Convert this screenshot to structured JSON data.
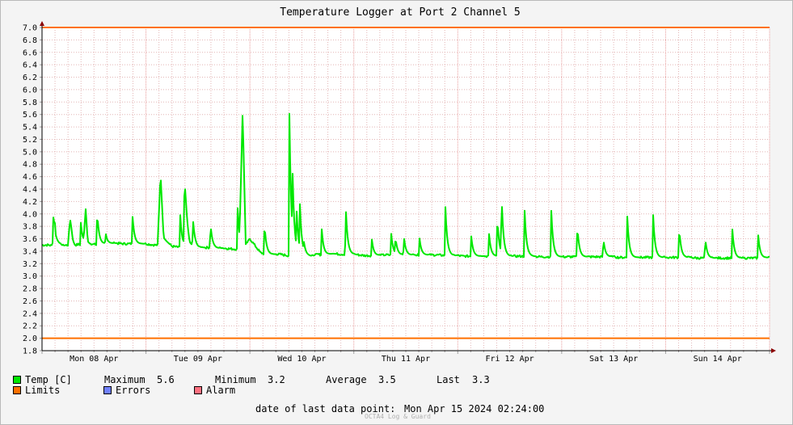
{
  "chart_data": {
    "type": "line",
    "title": "Temperature Logger at Port 2 Channel 5",
    "ylim": [
      1.8,
      7.0
    ],
    "yticks": [
      1.8,
      2.0,
      2.2,
      2.4,
      2.6,
      2.8,
      3.0,
      3.2,
      3.4,
      3.6,
      3.8,
      4.0,
      4.2,
      4.4,
      4.6,
      4.8,
      5.0,
      5.2,
      5.4,
      5.6,
      5.8,
      6.0,
      6.2,
      6.4,
      6.6,
      6.8,
      7.0
    ],
    "ytick_labels": [
      "1.8",
      "2.0",
      "2.2",
      "2.4",
      "2.6",
      "2.8",
      "3.0",
      "3.2",
      "3.4",
      "3.6",
      "3.8",
      "4.0",
      "4.2",
      "4.4",
      "4.6",
      "4.8",
      "5.0",
      "5.2",
      "5.4",
      "5.6",
      "5.8",
      "6.0",
      "6.2",
      "6.4",
      "6.6",
      "6.8",
      "7.0"
    ],
    "xlim_days": [
      0,
      7
    ],
    "xtick_labels": [
      "Mon 08 Apr",
      "Tue 09 Apr",
      "Wed 10 Apr",
      "Thu 11 Apr",
      "Fri 12 Apr",
      "Sat 13 Apr",
      "Sun 14 Apr"
    ],
    "grid": true,
    "limits": {
      "upper": 7.0,
      "lower": 2.0
    },
    "series": [
      {
        "name": "Temp [C]",
        "color": "#00e800",
        "x_days": [
          0.0,
          0.06,
          0.1,
          0.11,
          0.13,
          0.2,
          0.25,
          0.27,
          0.3,
          0.32,
          0.35,
          0.38,
          0.4,
          0.42,
          0.44,
          0.47,
          0.5,
          0.52,
          0.55,
          0.6,
          0.62,
          0.64,
          0.7,
          0.78,
          0.85,
          0.88,
          0.9,
          0.93,
          1.0,
          1.08,
          1.12,
          1.14,
          1.17,
          1.25,
          1.33,
          1.36,
          1.38,
          1.42,
          1.47,
          1.5,
          1.55,
          1.6,
          1.63,
          1.68,
          1.7,
          1.75,
          1.8,
          1.9,
          1.93,
          1.96,
          2.0,
          2.1,
          2.15,
          2.2,
          2.3,
          2.32,
          2.34,
          2.36,
          2.38,
          2.4,
          2.42,
          2.44,
          2.5,
          2.6,
          2.65,
          2.7,
          2.8,
          2.9,
          2.95,
          2.98,
          3.0,
          3.1,
          3.15,
          3.18,
          3.2,
          3.3,
          3.35,
          3.4,
          3.5,
          3.6,
          3.65,
          3.7,
          3.8,
          3.9,
          3.95,
          3.98,
          4.0,
          4.05,
          4.1,
          4.2,
          4.25,
          4.3,
          4.4,
          4.5,
          4.55,
          4.6,
          4.7,
          4.8,
          4.85,
          4.9,
          5.0,
          5.1,
          5.15,
          5.2,
          5.3,
          5.4,
          5.45,
          5.5,
          5.55,
          5.65,
          5.7,
          5.8,
          5.9,
          5.95,
          6.0,
          6.1,
          6.2,
          6.25,
          6.3,
          6.35,
          6.4,
          6.45,
          6.55,
          6.6,
          6.7,
          6.8,
          6.9,
          7.0
        ],
        "values": [
          3.5,
          3.5,
          3.49,
          4.0,
          3.55,
          3.49,
          3.5,
          3.93,
          3.55,
          3.5,
          3.51,
          3.5,
          3.52,
          4.05,
          3.55,
          3.5,
          3.52,
          3.5,
          3.51,
          3.52,
          3.51,
          3.52,
          3.53,
          3.52,
          3.52,
          3.53,
          3.52,
          3.52,
          3.52,
          3.5,
          3.5,
          4.55,
          3.6,
          3.48,
          3.46,
          3.45,
          3.85,
          3.5,
          3.48,
          3.46,
          3.46,
          3.46,
          3.46,
          3.45,
          3.45,
          3.45,
          3.44,
          3.43,
          5.61,
          3.5,
          3.6,
          3.38,
          3.35,
          3.35,
          3.35,
          3.34,
          3.34,
          3.33,
          3.33,
          3.34,
          3.34,
          3.34,
          3.34,
          3.32,
          3.35,
          3.34,
          3.36,
          3.35,
          3.35,
          3.35,
          3.35,
          3.33,
          3.33,
          3.33,
          3.33,
          3.34,
          3.34,
          3.34,
          3.34,
          3.34,
          3.34,
          3.34,
          3.34,
          3.33,
          3.33,
          3.33,
          3.33,
          3.32,
          3.32,
          3.32,
          3.32,
          3.32,
          3.32,
          3.32,
          3.32,
          3.32,
          3.32,
          3.31,
          3.31,
          3.31,
          3.31,
          3.31,
          3.31,
          3.31,
          3.31,
          3.31,
          3.31,
          3.31,
          3.3,
          3.3,
          3.3,
          3.3,
          3.3,
          3.3,
          3.3,
          3.3,
          3.3,
          3.3,
          3.29,
          3.29,
          3.29,
          3.29,
          3.29,
          3.29,
          3.29,
          3.29,
          3.29,
          3.3
        ],
        "spikes": [
          [
            0.12,
            4.0
          ],
          [
            0.37,
            3.93
          ],
          [
            0.53,
            4.05
          ],
          [
            0.61,
            3.72
          ],
          [
            0.87,
            3.98
          ],
          [
            1.12,
            3.84
          ],
          [
            1.33,
            3.98
          ],
          [
            1.37,
            4.54
          ],
          [
            1.45,
            3.98
          ],
          [
            1.62,
            3.86
          ],
          [
            1.88,
            4.18
          ],
          [
            2.14,
            3.86
          ],
          [
            2.38,
            5.61
          ],
          [
            2.41,
            4.73
          ],
          [
            2.45,
            4.04
          ],
          [
            2.48,
            4.21
          ],
          [
            2.52,
            3.55
          ],
          [
            2.69,
            3.78
          ],
          [
            2.92,
            4.22
          ],
          [
            3.17,
            3.64
          ],
          [
            3.36,
            3.68
          ],
          [
            3.4,
            3.64
          ],
          [
            3.48,
            3.67
          ],
          [
            3.63,
            3.64
          ],
          [
            3.88,
            4.16
          ],
          [
            4.13,
            3.64
          ],
          [
            4.3,
            3.7
          ],
          [
            4.38,
            3.98
          ],
          [
            4.42,
            4.4
          ],
          [
            4.64,
            4.2
          ],
          [
            4.9,
            4.05
          ],
          [
            5.15,
            3.83
          ],
          [
            5.4,
            3.62
          ],
          [
            5.63,
            4.0
          ],
          [
            5.88,
            3.98
          ],
          [
            6.13,
            3.8
          ],
          [
            6.38,
            3.63
          ],
          [
            6.64,
            3.81
          ],
          [
            6.89,
            3.68
          ]
        ]
      }
    ],
    "legend": {
      "temp_label": "Temp [C]",
      "maximum_label": "Maximum",
      "maximum_value": "5.6",
      "minimum_label": "Minimum",
      "minimum_value": "3.2",
      "average_label": "Average",
      "average_value": "3.5",
      "last_label": "Last",
      "last_value": "3.3",
      "limits_label": "Limits",
      "errors_label": "Errors",
      "alarm_label": "Alarm",
      "temp_color": "#00e800",
      "limits_color": "#ff7000",
      "errors_color": "#7080ff",
      "alarm_color": "#ff7080"
    },
    "footer": {
      "label": "date of last data point:",
      "value": "Mon Apr 15 2024 02:24:00",
      "brand": "OCTA4 Log & Guard"
    }
  }
}
